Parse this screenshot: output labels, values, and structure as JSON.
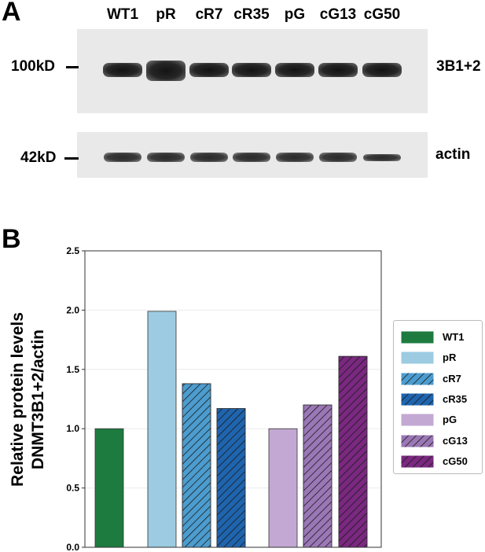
{
  "panels": {
    "a_label": "A",
    "b_label": "B"
  },
  "blot": {
    "lanes": [
      "WT1",
      "pR",
      "cR7",
      "cR35",
      "pG",
      "cG13",
      "cG50"
    ],
    "upper_marker": "100kD",
    "lower_marker": "42kD",
    "upper_target": "3B1+2",
    "lower_target": "actin"
  },
  "colors": {
    "WT1": "#1e7b40",
    "pR": "#9ccbe2",
    "cR7": "#4c9ccf",
    "cR35": "#1f64ae",
    "pG": "#c3a8d3",
    "cG13": "#9b77b6",
    "cG50": "#7a2880"
  },
  "chart_data": {
    "type": "bar",
    "categories": [
      "WT1",
      "pR",
      "cR7",
      "cR35",
      "pG",
      "cG13",
      "cG50"
    ],
    "values": [
      1.0,
      1.99,
      1.38,
      1.17,
      1.0,
      1.2,
      1.61
    ],
    "hatched": [
      false,
      false,
      true,
      true,
      false,
      true,
      true
    ],
    "ylabel_line1": "Relative protein levels",
    "ylabel_line2": "DNMT3B1+2/actin",
    "ylim": [
      0,
      2.5
    ],
    "yticks": [
      "0.0",
      "0.5",
      "1.0",
      "1.5",
      "2.0",
      "2.5"
    ],
    "grid": true,
    "legend": "right",
    "legend_entries": [
      "WT1",
      "pR",
      "cR7",
      "cR35",
      "pG",
      "cG13",
      "cG50"
    ]
  }
}
